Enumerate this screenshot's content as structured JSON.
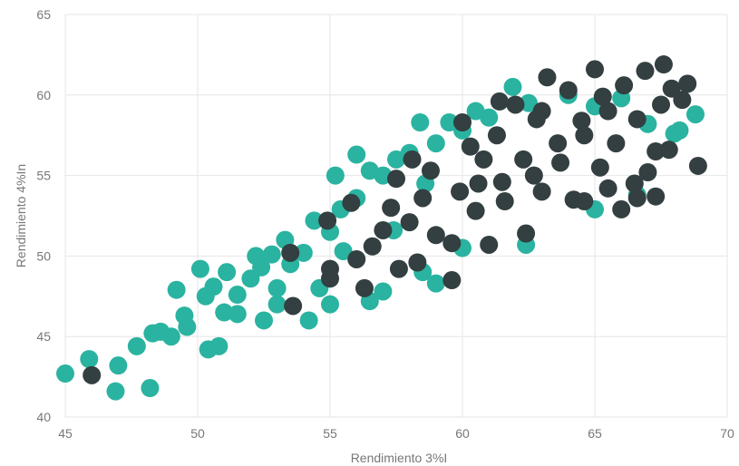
{
  "chart_data": {
    "type": "scatter",
    "title": "",
    "xlabel": "Rendimiento 3%I",
    "ylabel": "Rendimiento 4%In",
    "xlim": [
      45,
      70
    ],
    "ylim": [
      40,
      65
    ],
    "x_ticks": [
      "45",
      "50",
      "55",
      "60",
      "65",
      "70"
    ],
    "y_ticks": [
      "40",
      "45",
      "50",
      "55",
      "60",
      "65"
    ],
    "grid": true,
    "legend": "none",
    "colors": {
      "teal": "#2ab3a0",
      "dark": "#333f40"
    },
    "series": [
      {
        "color": "#2ab3a0",
        "points": [
          [
            45.0,
            42.7
          ],
          [
            45.9,
            43.6
          ],
          [
            47.0,
            43.2
          ],
          [
            46.9,
            41.6
          ],
          [
            48.2,
            41.8
          ],
          [
            47.7,
            44.4
          ],
          [
            48.3,
            45.2
          ],
          [
            49.0,
            45.0
          ],
          [
            49.2,
            47.9
          ],
          [
            49.5,
            46.3
          ],
          [
            50.1,
            49.2
          ],
          [
            50.4,
            44.2
          ],
          [
            50.8,
            44.4
          ],
          [
            50.6,
            48.1
          ],
          [
            51.0,
            46.5
          ],
          [
            51.5,
            47.6
          ],
          [
            52.0,
            48.6
          ],
          [
            52.4,
            49.3
          ],
          [
            52.8,
            50.1
          ],
          [
            53.0,
            48.0
          ],
          [
            53.5,
            49.5
          ],
          [
            53.3,
            51.0
          ],
          [
            54.0,
            50.2
          ],
          [
            54.4,
            52.2
          ],
          [
            55.0,
            51.5
          ],
          [
            55.4,
            52.9
          ],
          [
            55.2,
            55.0
          ],
          [
            56.0,
            53.6
          ],
          [
            56.5,
            55.3
          ],
          [
            57.0,
            55.0
          ],
          [
            57.5,
            56.0
          ],
          [
            58.0,
            56.4
          ],
          [
            58.4,
            58.3
          ],
          [
            59.0,
            57.0
          ],
          [
            59.5,
            58.3
          ],
          [
            60.0,
            57.8
          ],
          [
            60.5,
            59.0
          ],
          [
            61.0,
            58.6
          ],
          [
            61.9,
            60.5
          ],
          [
            62.5,
            59.5
          ],
          [
            64.0,
            60.0
          ],
          [
            65.0,
            59.3
          ],
          [
            66.0,
            59.8
          ],
          [
            67.0,
            58.2
          ],
          [
            68.2,
            57.8
          ],
          [
            68.8,
            58.8
          ],
          [
            68.0,
            57.6
          ],
          [
            60.0,
            50.5
          ],
          [
            62.4,
            50.7
          ],
          [
            65.0,
            52.9
          ],
          [
            66.6,
            53.8
          ],
          [
            59.0,
            48.3
          ],
          [
            58.5,
            49.0
          ],
          [
            57.0,
            47.8
          ],
          [
            56.5,
            47.2
          ],
          [
            55.0,
            47.0
          ],
          [
            54.2,
            46.0
          ],
          [
            53.0,
            47.0
          ],
          [
            52.5,
            46.0
          ],
          [
            51.5,
            46.4
          ],
          [
            50.3,
            47.5
          ],
          [
            55.5,
            50.3
          ],
          [
            57.4,
            51.6
          ],
          [
            56.0,
            56.3
          ],
          [
            58.6,
            54.5
          ],
          [
            49.6,
            45.6
          ],
          [
            48.6,
            45.3
          ],
          [
            52.2,
            50.0
          ],
          [
            54.6,
            48.0
          ],
          [
            51.1,
            49.0
          ]
        ]
      },
      {
        "color": "#333f40",
        "points": [
          [
            46.0,
            42.6
          ],
          [
            53.5,
            50.2
          ],
          [
            53.6,
            46.9
          ],
          [
            55.0,
            49.2
          ],
          [
            55.0,
            48.6
          ],
          [
            54.9,
            52.2
          ],
          [
            56.0,
            49.8
          ],
          [
            56.3,
            48.0
          ],
          [
            56.6,
            50.6
          ],
          [
            55.8,
            53.3
          ],
          [
            57.0,
            51.6
          ],
          [
            57.3,
            53.0
          ],
          [
            57.5,
            54.8
          ],
          [
            58.0,
            52.1
          ],
          [
            58.1,
            56.0
          ],
          [
            58.5,
            53.6
          ],
          [
            58.8,
            55.3
          ],
          [
            59.0,
            51.3
          ],
          [
            59.6,
            48.5
          ],
          [
            59.9,
            54.0
          ],
          [
            60.0,
            58.3
          ],
          [
            60.5,
            52.8
          ],
          [
            60.8,
            56.0
          ],
          [
            61.0,
            50.7
          ],
          [
            61.3,
            57.5
          ],
          [
            61.5,
            54.6
          ],
          [
            62.0,
            59.4
          ],
          [
            62.3,
            56.0
          ],
          [
            62.4,
            51.4
          ],
          [
            62.8,
            58.5
          ],
          [
            63.0,
            54.0
          ],
          [
            63.2,
            61.1
          ],
          [
            63.6,
            57.0
          ],
          [
            64.0,
            60.3
          ],
          [
            64.2,
            53.5
          ],
          [
            64.5,
            58.4
          ],
          [
            65.0,
            61.6
          ],
          [
            65.2,
            55.5
          ],
          [
            65.5,
            59.0
          ],
          [
            65.8,
            57.0
          ],
          [
            66.0,
            52.9
          ],
          [
            66.1,
            60.6
          ],
          [
            66.5,
            54.5
          ],
          [
            66.6,
            58.5
          ],
          [
            66.9,
            61.5
          ],
          [
            67.0,
            55.2
          ],
          [
            67.3,
            56.5
          ],
          [
            67.6,
            61.9
          ],
          [
            67.5,
            59.4
          ],
          [
            67.8,
            56.6
          ],
          [
            67.9,
            60.4
          ],
          [
            68.3,
            59.7
          ],
          [
            68.5,
            60.7
          ],
          [
            68.9,
            55.6
          ],
          [
            67.3,
            53.7
          ],
          [
            66.6,
            53.6
          ],
          [
            65.5,
            54.2
          ],
          [
            64.6,
            53.4
          ],
          [
            63.7,
            55.8
          ],
          [
            62.7,
            55.0
          ],
          [
            61.6,
            53.4
          ],
          [
            60.6,
            54.5
          ],
          [
            59.6,
            50.8
          ],
          [
            58.3,
            49.6
          ],
          [
            57.6,
            49.2
          ],
          [
            60.3,
            56.8
          ],
          [
            61.4,
            59.6
          ],
          [
            63.0,
            59.0
          ],
          [
            64.6,
            57.5
          ],
          [
            65.3,
            59.9
          ]
        ]
      }
    ]
  }
}
